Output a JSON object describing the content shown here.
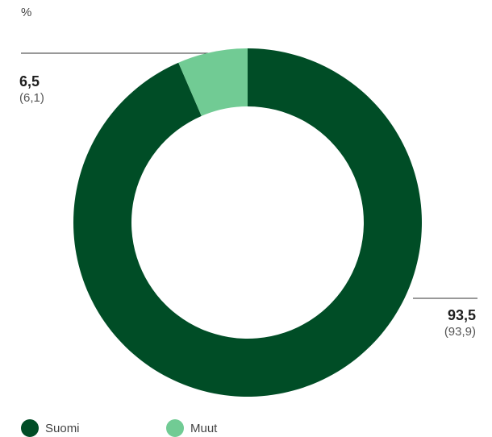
{
  "unit_label": "%",
  "colors": {
    "suomi": "#004d26",
    "muut": "#71cb94"
  },
  "chart_data": {
    "type": "pie",
    "donut": true,
    "title": "",
    "unit": "%",
    "slices": [
      {
        "name": "Suomi",
        "value": 93.5,
        "value_label": "93,5",
        "previous": 93.9,
        "previous_label": "(93,9)",
        "color": "#004d26"
      },
      {
        "name": "Muut",
        "value": 6.5,
        "value_label": "6,5",
        "previous": 6.1,
        "previous_label": "(6,1)",
        "color": "#71cb94"
      }
    ],
    "start_angle": "top",
    "direction": "clockwise",
    "legend": {
      "placement": "bottom-left",
      "entries": [
        "Suomi",
        "Muut"
      ]
    }
  }
}
